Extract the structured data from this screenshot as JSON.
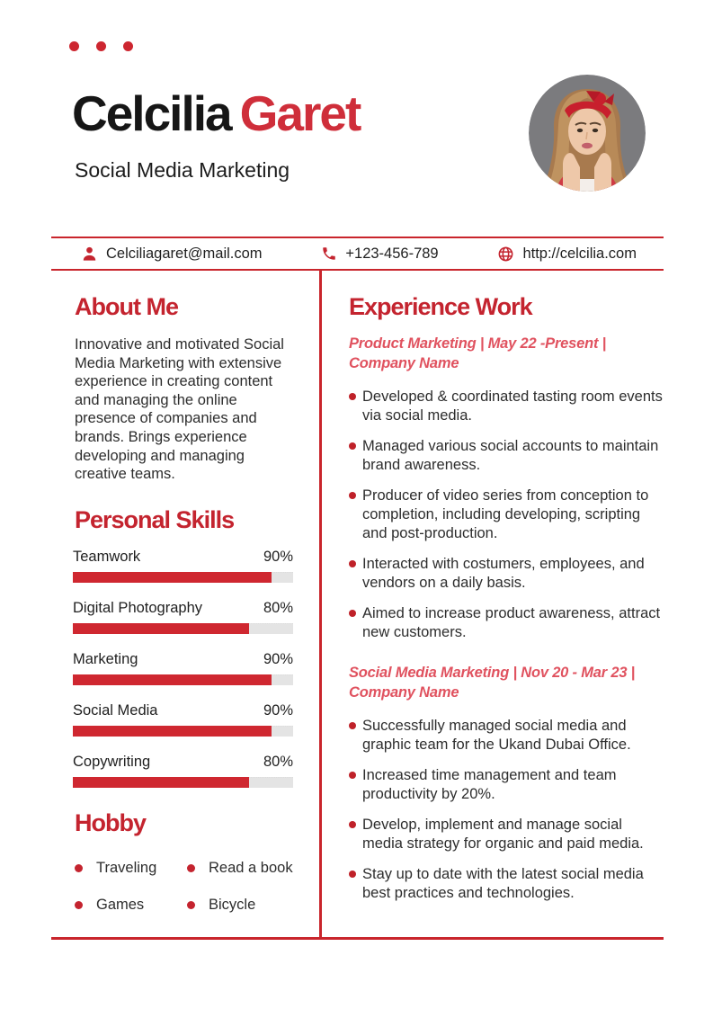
{
  "page": {
    "background": "#ffffff",
    "accent_red": "#c4242f",
    "rule_red": "#c9252c",
    "bar_red": "#cf2730",
    "bar_track": "#e4e4e4",
    "job_title_red": "#e0525f",
    "name_black": "#161616",
    "name_red": "#cf2e3a",
    "text_dark": "#2d2d2d"
  },
  "decor": {
    "dots_count": 3
  },
  "header": {
    "first_name": "Celcilia",
    "last_name": "Garet",
    "subtitle": "Social Media Marketing",
    "photo": "woman-portrait-red-headband"
  },
  "contact": {
    "email": {
      "icon": "person-icon",
      "value": "Celciliagaret@mail.com"
    },
    "phone": {
      "icon": "phone-icon",
      "value": "+123-456-789"
    },
    "website": {
      "icon": "globe-icon",
      "value": "http://celcilia.com"
    }
  },
  "about": {
    "title": "About Me",
    "text": "Innovative and motivated Social Media Marketing with extensive experience in creating content and managing the online presence of companies and brands. Brings experience developing and managing creative teams."
  },
  "skills": {
    "title": "Personal Skills",
    "items": [
      {
        "label": "Teamwork",
        "percent": "90%",
        "value": 90
      },
      {
        "label": "Digital Photography",
        "percent": "80%",
        "value": 80
      },
      {
        "label": "Marketing",
        "percent": "90%",
        "value": 90
      },
      {
        "label": "Social Media",
        "percent": "90%",
        "value": 90
      },
      {
        "label": "Copywriting",
        "percent": "80%",
        "value": 80
      }
    ]
  },
  "hobby": {
    "title": "Hobby",
    "items": [
      "Traveling",
      "Read a book",
      "Games",
      "Bicycle"
    ]
  },
  "experience": {
    "title": "Experience Work",
    "jobs": [
      {
        "heading": "Product Marketing | May 22 -Present | Company Name",
        "bullets": [
          "Developed & coordinated tasting room events via social media.",
          "Managed various social accounts to maintain brand awareness.",
          "Producer of video series from conception to completion, including developing, scripting and post-production.",
          "Interacted with costumers, employees, and vendors on a daily basis.",
          "Aimed to increase product awareness, attract new customers."
        ]
      },
      {
        "heading": "Social Media Marketing | Nov 20 - Mar 23 | Company Name",
        "bullets": [
          "Successfully managed social media and graphic team for the Ukand Dubai Office.",
          "Increased time management and team productivity by 20%.",
          "Develop, implement and manage social media strategy for organic and paid media.",
          "Stay up to date with the latest social media best practices and technologies."
        ]
      }
    ]
  }
}
